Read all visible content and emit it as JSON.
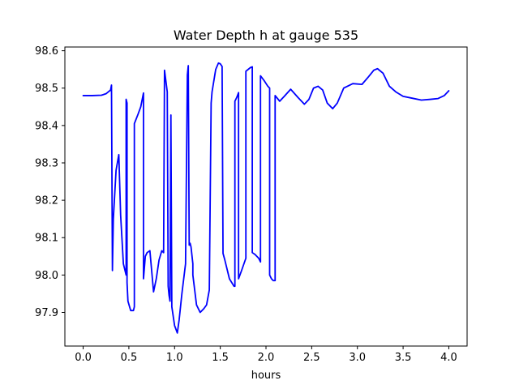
{
  "chart_data": {
    "type": "line",
    "title": "Water Depth h at gauge 535",
    "xlabel": "hours",
    "ylabel": "",
    "xlim": [
      -0.2,
      4.2
    ],
    "ylim": [
      97.81,
      98.61
    ],
    "xticks": [
      {
        "value": 0.0,
        "label": "0.0"
      },
      {
        "value": 0.5,
        "label": "0.5"
      },
      {
        "value": 1.0,
        "label": "1.0"
      },
      {
        "value": 1.5,
        "label": "1.5"
      },
      {
        "value": 2.0,
        "label": "2.0"
      },
      {
        "value": 2.5,
        "label": "2.5"
      },
      {
        "value": 3.0,
        "label": "3.0"
      },
      {
        "value": 3.5,
        "label": "3.5"
      },
      {
        "value": 4.0,
        "label": "4.0"
      }
    ],
    "yticks": [
      {
        "value": 97.9,
        "label": "97.9"
      },
      {
        "value": 98.0,
        "label": "98.0"
      },
      {
        "value": 98.1,
        "label": "98.1"
      },
      {
        "value": 98.2,
        "label": "98.2"
      },
      {
        "value": 98.3,
        "label": "98.3"
      },
      {
        "value": 98.4,
        "label": "98.4"
      },
      {
        "value": 98.5,
        "label": "98.5"
      },
      {
        "value": 98.6,
        "label": "98.6"
      }
    ],
    "grid": false,
    "series": [
      {
        "color": "#0000ff",
        "x": [
          0.0,
          0.1,
          0.2,
          0.25,
          0.3,
          0.31,
          0.32,
          0.33,
          0.36,
          0.39,
          0.41,
          0.44,
          0.47,
          0.47,
          0.48,
          0.48,
          0.49,
          0.52,
          0.55,
          0.56,
          0.56,
          0.6,
          0.63,
          0.66,
          0.66,
          0.68,
          0.7,
          0.73,
          0.75,
          0.77,
          0.8,
          0.83,
          0.86,
          0.88,
          0.89,
          0.89,
          0.92,
          0.93,
          0.94,
          0.95,
          0.96,
          0.96,
          0.97,
          1.0,
          1.03,
          1.05,
          1.08,
          1.12,
          1.14,
          1.15,
          1.16,
          1.17,
          1.18,
          1.2,
          1.2,
          1.24,
          1.28,
          1.32,
          1.35,
          1.38,
          1.4,
          1.41,
          1.45,
          1.48,
          1.5,
          1.52,
          1.53,
          1.55,
          1.6,
          1.65,
          1.66,
          1.66,
          1.68,
          1.7,
          1.7,
          1.73,
          1.78,
          1.78,
          1.83,
          1.85,
          1.85,
          1.88,
          1.92,
          1.94,
          1.94,
          1.98,
          2.02,
          2.04,
          2.04,
          2.06,
          2.08,
          2.1,
          2.1,
          2.15,
          2.2,
          2.27,
          2.35,
          2.42,
          2.47,
          2.52,
          2.57,
          2.62,
          2.67,
          2.73,
          2.78,
          2.85,
          2.95,
          3.05,
          3.12,
          3.18,
          3.22,
          3.28,
          3.35,
          3.42,
          3.5,
          3.6,
          3.7,
          3.8,
          3.88,
          3.95,
          4.0
        ],
        "values": [
          98.48,
          98.48,
          98.481,
          98.485,
          98.495,
          98.508,
          98.012,
          98.15,
          98.28,
          98.322,
          98.16,
          98.03,
          98.0,
          98.47,
          98.46,
          97.98,
          97.93,
          97.905,
          97.905,
          97.915,
          98.405,
          98.43,
          98.45,
          98.487,
          97.99,
          98.05,
          98.06,
          98.065,
          98.01,
          97.955,
          97.99,
          98.04,
          98.065,
          98.06,
          98.548,
          98.548,
          98.49,
          97.97,
          97.945,
          97.93,
          98.428,
          98.418,
          97.915,
          97.865,
          97.845,
          97.88,
          97.95,
          98.03,
          98.535,
          98.56,
          98.08,
          98.085,
          98.075,
          98.03,
          98.0,
          97.92,
          97.9,
          97.91,
          97.92,
          97.96,
          98.46,
          98.49,
          98.55,
          98.567,
          98.565,
          98.558,
          98.058,
          98.04,
          97.99,
          97.97,
          97.97,
          98.465,
          98.475,
          98.488,
          97.99,
          98.01,
          98.045,
          98.545,
          98.555,
          98.557,
          98.06,
          98.055,
          98.045,
          98.035,
          98.533,
          98.52,
          98.505,
          98.5,
          98.0,
          97.99,
          97.985,
          97.985,
          98.48,
          98.465,
          98.478,
          98.497,
          98.475,
          98.457,
          98.47,
          98.5,
          98.505,
          98.495,
          98.46,
          98.445,
          98.46,
          98.5,
          98.512,
          98.51,
          98.53,
          98.548,
          98.552,
          98.54,
          98.505,
          98.49,
          98.478,
          98.473,
          98.468,
          98.47,
          98.472,
          98.48,
          98.493
        ]
      }
    ]
  }
}
